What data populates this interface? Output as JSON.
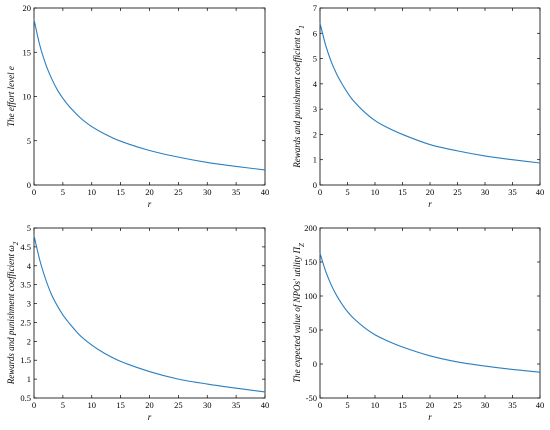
{
  "chart_data": [
    {
      "type": "line",
      "xlabel": "r",
      "ylabel": "The effort level e",
      "xlim": [
        0,
        40
      ],
      "ylim": [
        0,
        20
      ],
      "xticks": [
        0,
        5,
        10,
        15,
        20,
        25,
        30,
        35,
        40
      ],
      "yticks": [
        0,
        5,
        10,
        15,
        20
      ],
      "grid": false,
      "series": [
        {
          "color": "#2a7fc1",
          "x": [
            0,
            1,
            2,
            3,
            4,
            5,
            6,
            8,
            10,
            12,
            15,
            20,
            25,
            30,
            35,
            40
          ],
          "y": [
            18.7,
            15.8,
            13.7,
            12.1,
            10.8,
            9.8,
            8.95,
            7.6,
            6.6,
            5.85,
            4.95,
            3.9,
            3.15,
            2.55,
            2.1,
            1.7
          ]
        }
      ]
    },
    {
      "type": "line",
      "xlabel": "r",
      "ylabel": "Rewards and punishment coefficient ω",
      "ylabel_sub": "1",
      "xlim": [
        0,
        40
      ],
      "ylim": [
        0,
        7
      ],
      "xticks": [
        0,
        5,
        10,
        15,
        20,
        25,
        30,
        35,
        40
      ],
      "yticks": [
        0,
        1,
        2,
        3,
        4,
        5,
        6,
        7
      ],
      "grid": false,
      "series": [
        {
          "color": "#2a7fc1",
          "x": [
            0,
            1,
            2,
            3,
            4,
            5,
            6,
            8,
            10,
            12,
            15,
            20,
            25,
            30,
            35,
            40
          ],
          "y": [
            6.4,
            5.55,
            4.9,
            4.4,
            4.0,
            3.65,
            3.35,
            2.9,
            2.55,
            2.3,
            2.0,
            1.6,
            1.35,
            1.15,
            1.0,
            0.87
          ]
        }
      ]
    },
    {
      "type": "line",
      "xlabel": "r",
      "ylabel": "Rewards and punishment coefficient ω",
      "ylabel_sub": "2",
      "xlim": [
        0,
        40
      ],
      "ylim": [
        0.5,
        5
      ],
      "xticks": [
        0,
        5,
        10,
        15,
        20,
        25,
        30,
        35,
        40
      ],
      "yticks": [
        0.5,
        1,
        1.5,
        2,
        2.5,
        3,
        3.5,
        4,
        4.5,
        5
      ],
      "grid": false,
      "series": [
        {
          "color": "#2a7fc1",
          "x": [
            0,
            1,
            2,
            3,
            4,
            5,
            6,
            8,
            10,
            12,
            15,
            20,
            25,
            30,
            35,
            40
          ],
          "y": [
            4.8,
            4.15,
            3.65,
            3.25,
            2.95,
            2.7,
            2.5,
            2.15,
            1.9,
            1.7,
            1.47,
            1.2,
            1.0,
            0.87,
            0.76,
            0.66
          ]
        }
      ]
    },
    {
      "type": "line",
      "xlabel": "r",
      "ylabel": "The expected value of NPOs' utility Π",
      "ylabel_sub": "Z",
      "xlim": [
        0,
        40
      ],
      "ylim": [
        -50,
        200
      ],
      "xticks": [
        0,
        5,
        10,
        15,
        20,
        25,
        30,
        35,
        40
      ],
      "yticks": [
        -50,
        0,
        50,
        100,
        150,
        200
      ],
      "grid": false,
      "series": [
        {
          "color": "#2a7fc1",
          "x": [
            0,
            1,
            2,
            3,
            4,
            5,
            6,
            8,
            10,
            12,
            15,
            20,
            25,
            30,
            35,
            40
          ],
          "y": [
            163,
            137,
            117,
            101,
            88,
            77,
            68,
            54,
            43,
            35,
            25,
            12,
            3,
            -3,
            -8,
            -12
          ]
        }
      ]
    }
  ]
}
